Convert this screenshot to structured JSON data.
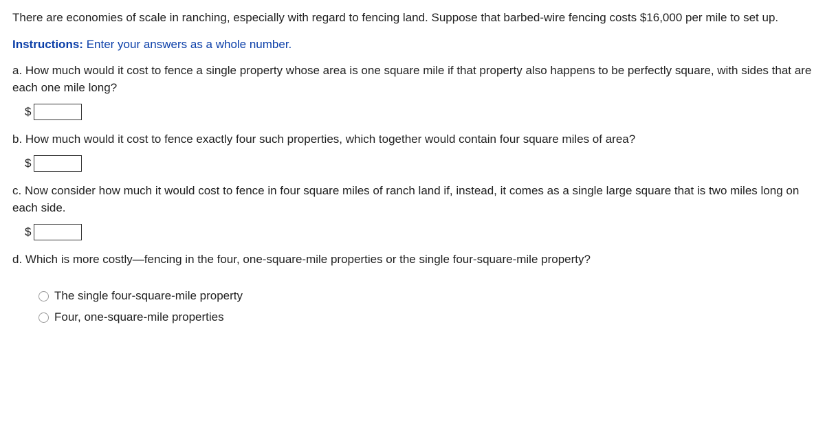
{
  "intro": "There are economies of scale in ranching, especially with regard to fencing land. Suppose that barbed-wire fencing costs $16,000 per mile to set up.",
  "instructions": {
    "label": "Instructions:",
    "text": "Enter your answers as a whole number."
  },
  "qa": {
    "prompt": "a. How much would it cost to fence a single property whose area is one square mile if that property also happens to be perfectly square, with sides that are each one mile long?",
    "currency": "$",
    "value": ""
  },
  "qb": {
    "prompt": "b. How much would it cost to fence exactly four such properties, which together would contain four square miles of area?",
    "currency": "$",
    "value": ""
  },
  "qc": {
    "prompt": "c. Now consider how much it would cost to fence in four square miles of ranch land if, instead, it comes as a single large square that is two miles long on each side.",
    "currency": "$",
    "value": ""
  },
  "qd": {
    "prompt": "d. Which is more costly—fencing in the four, one-square-mile properties or the single four-square-mile property?",
    "options": [
      "The single four-square-mile property",
      "Four, one-square-mile properties"
    ]
  }
}
